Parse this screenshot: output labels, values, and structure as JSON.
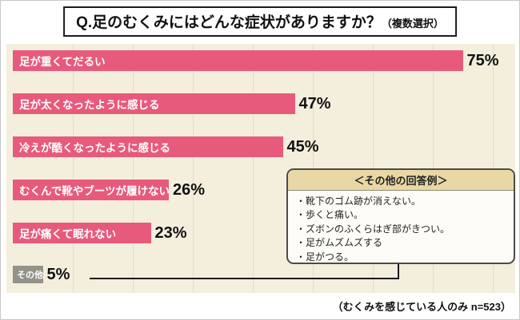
{
  "title": "Q.足のむくみにはどんな症状がありますか？",
  "title_suffix": "（複数選択）",
  "chart_data": {
    "type": "bar",
    "orientation": "horizontal",
    "categories": [
      "足が重くてだるい",
      "足が太くなったように感じる",
      "冷えが酷くなったように感じる",
      "むくんで靴やブーツが履けない",
      "足が痛くて眠れない",
      "その他"
    ],
    "values": [
      75,
      47,
      45,
      26,
      23,
      5
    ],
    "value_labels": [
      "75%",
      "47%",
      "45%",
      "26%",
      "23%",
      "5%"
    ],
    "xlim": [
      0,
      80
    ],
    "grid": true,
    "bar_color": "#e75a7c",
    "other_bar_color": "#93938a",
    "background_color": "#f4efdd",
    "note": "（むくみを感じている人のみ n=523）"
  },
  "callout": {
    "header": "＜その他の回答例＞",
    "items": [
      "・靴下のゴム跡が消えない。",
      "・歩くと痛い。",
      "・ズボンのふくらはぎ部がきつい。",
      "・足がムズムズする",
      "・足がつる。"
    ]
  }
}
